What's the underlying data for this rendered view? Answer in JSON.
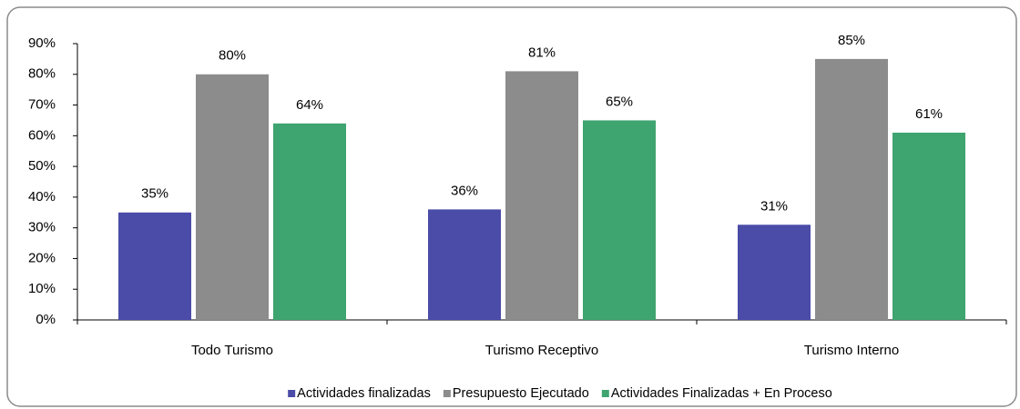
{
  "chart_data": {
    "type": "bar",
    "categories": [
      "Todo Turismo",
      "Turismo Receptivo",
      "Turismo Interno"
    ],
    "series": [
      {
        "name": "Actividades finalizadas",
        "color": "#4b4ba8",
        "values": [
          35,
          36,
          31
        ],
        "value_labels": [
          "35%",
          "36%",
          "31%"
        ]
      },
      {
        "name": "Presupuesto Ejecutado",
        "color": "#8c8c8c",
        "values": [
          80,
          81,
          85
        ],
        "value_labels": [
          "80%",
          "81%",
          "85%"
        ]
      },
      {
        "name": "Actividades Finalizadas + En Proceso",
        "color": "#3ea470",
        "values": [
          64,
          65,
          61
        ],
        "value_labels": [
          "64%",
          "65%",
          "61%"
        ]
      }
    ],
    "ylim": [
      0,
      90
    ],
    "yticks": [
      {
        "value": 0,
        "label": "0%"
      },
      {
        "value": 10,
        "label": "10%"
      },
      {
        "value": 20,
        "label": "20%"
      },
      {
        "value": 30,
        "label": "30%"
      },
      {
        "value": 40,
        "label": "40%"
      },
      {
        "value": 50,
        "label": "50%"
      },
      {
        "value": 60,
        "label": "60%"
      },
      {
        "value": 70,
        "label": "70%"
      },
      {
        "value": 80,
        "label": "80%"
      },
      {
        "value": 90,
        "label": "90%"
      }
    ],
    "grid": false,
    "legend": "bottom"
  }
}
